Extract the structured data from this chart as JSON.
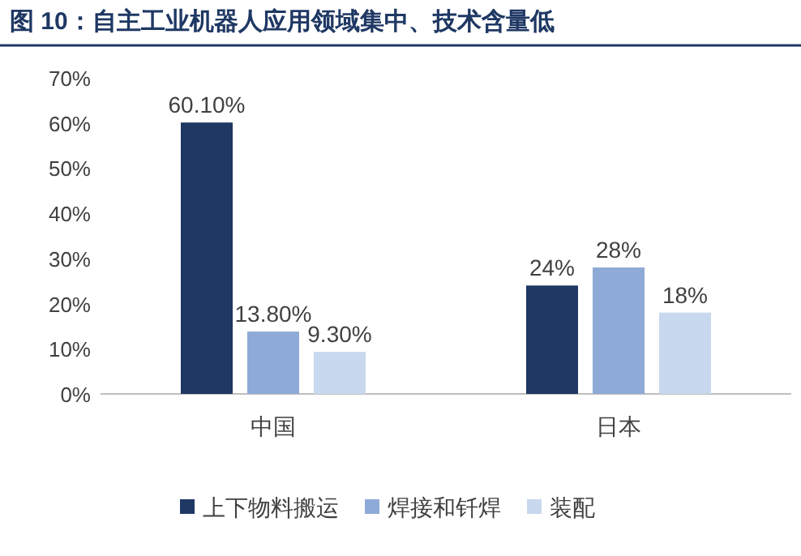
{
  "chart_data": {
    "type": "bar",
    "title": "图 10：自主工业机器人应用领域集中、技术含量低",
    "categories": [
      "中国",
      "日本"
    ],
    "series": [
      {
        "name": "上下物料搬运",
        "color": "#1f3864",
        "values": [
          60.1,
          24
        ],
        "value_labels": [
          "60.10%",
          "24%"
        ]
      },
      {
        "name": "焊接和钎焊",
        "color": "#8eaad6",
        "values": [
          13.8,
          28
        ],
        "value_labels": [
          "13.80%",
          "28%"
        ]
      },
      {
        "name": "装配",
        "color": "#c8d8ee",
        "values": [
          9.3,
          18
        ],
        "value_labels": [
          "9.30%",
          "18%"
        ]
      }
    ],
    "ylim": [
      0,
      70
    ],
    "yticks": [
      {
        "value": 0,
        "label": "0%"
      },
      {
        "value": 10,
        "label": "10%"
      },
      {
        "value": 20,
        "label": "20%"
      },
      {
        "value": 30,
        "label": "30%"
      },
      {
        "value": 40,
        "label": "40%"
      },
      {
        "value": 50,
        "label": "50%"
      },
      {
        "value": 60,
        "label": "60%"
      },
      {
        "value": 70,
        "label": "70%"
      }
    ],
    "grid": false,
    "legend": "bottom"
  }
}
